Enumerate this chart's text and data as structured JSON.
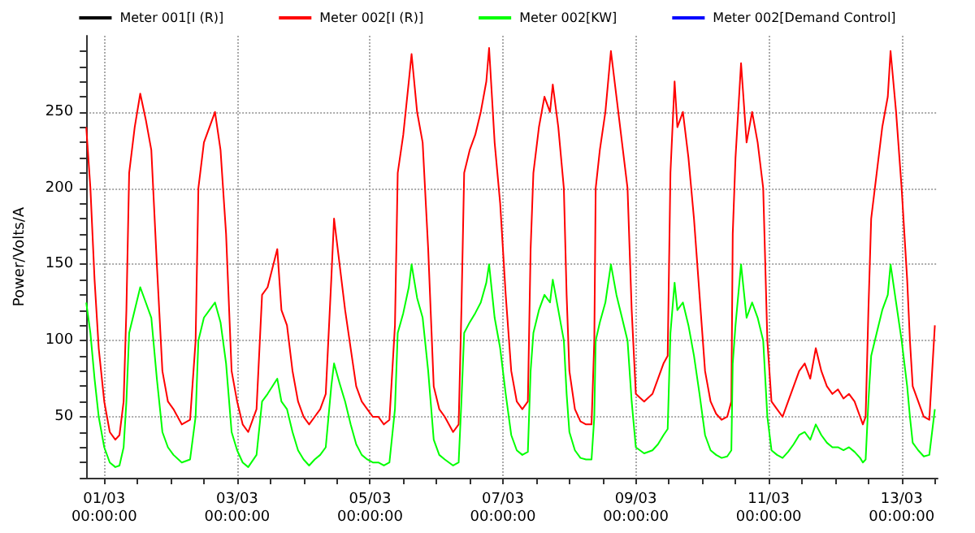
{
  "chart_data": {
    "type": "line",
    "ylabel": "Power/Volts/A",
    "legend": "top",
    "grid": true,
    "x": [
      "--02-28T17:30",
      "--02-28T19:00",
      "--02-28T20:30",
      "--02-28T22:00",
      "--03-01T00:00",
      "--03-01T02:00",
      "--03-01T04:00",
      "--03-01T05:30",
      "--03-01T07:00",
      "--03-01T08:00",
      "--03-01T09:00",
      "--03-01T11:00",
      "--03-01T13:00",
      "--03-01T15:00",
      "--03-01T17:00",
      "--03-01T19:00",
      "--03-01T21:00",
      "--03-01T23:00",
      "--03-02T01:00",
      "--03-02T04:00",
      "--03-02T07:00",
      "--03-02T09:00",
      "--03-02T10:00",
      "--03-02T12:00",
      "--03-02T14:00",
      "--03-02T16:00",
      "--03-02T18:00",
      "--03-02T20:00",
      "--03-02T22:00",
      "--03-03T00:00",
      "--03-03T02:00",
      "--03-03T04:00",
      "--03-03T07:00",
      "--03-03T09:00",
      "--03-03T11:00",
      "--03-03T14:30",
      "--03-03T16:00",
      "--03-03T18:00",
      "--03-03T20:00",
      "--03-03T22:00",
      "--03-04T00:00",
      "--03-04T02:00",
      "--03-04T04:00",
      "--03-04T06:00",
      "--03-04T08:00",
      "--03-04T10:00",
      "--03-04T11:00",
      "--03-04T13:00",
      "--03-04T15:00",
      "--03-04T17:00",
      "--03-04T19:00",
      "--03-04T21:00",
      "--03-04T23:00",
      "--03-05T01:00",
      "--03-05T03:00",
      "--03-05T05:00",
      "--03-05T07:00",
      "--03-05T09:00",
      "--03-05T10:00",
      "--03-05T12:00",
      "--03-05T14:00",
      "--03-05T15:00",
      "--03-05T17:00",
      "--03-05T19:00",
      "--03-05T21:00",
      "--03-05T23:00",
      "--03-06T01:00",
      "--03-06T03:00",
      "--03-06T06:00",
      "--03-06T08:00",
      "--03-06T09:00",
      "--03-06T10:00",
      "--03-06T12:00",
      "--03-06T14:00",
      "--03-06T16:00",
      "--03-06T18:00",
      "--03-06T19:00",
      "--03-06T21:00",
      "--03-06T23:00",
      "--03-07T01:00",
      "--03-07T03:00",
      "--03-07T05:00",
      "--03-07T07:00",
      "--03-07T09:00",
      "--03-07T10:00",
      "--03-07T11:00",
      "--03-07T13:00",
      "--03-07T15:00",
      "--03-07T17:00",
      "--03-07T18:00",
      "--03-07T20:00",
      "--03-07T22:00",
      "--03-07T23:00",
      "--03-08T00:00",
      "--03-08T02:00",
      "--03-08T04:00",
      "--03-08T06:00",
      "--03-08T08:00",
      "--03-08T09:00",
      "--03-08T09:30",
      "--03-08T11:00",
      "--03-08T13:00",
      "--03-08T15:00",
      "--03-08T17:00",
      "--03-08T19:00",
      "--03-08T21:00",
      "--03-08T22:30",
      "--03-09T00:00",
      "--03-09T03:00",
      "--03-09T06:00",
      "--03-09T08:00",
      "--03-09T10:00",
      "--03-09T11:30",
      "--03-09T12:30",
      "--03-09T14:00",
      "--03-09T15:00",
      "--03-09T17:00",
      "--03-09T19:00",
      "--03-09T21:00",
      "--03-09T23:00",
      "--03-10T01:00",
      "--03-10T03:00",
      "--03-10T05:00",
      "--03-10T07:00",
      "--03-10T09:00",
      "--03-10T10:30",
      "--03-10T11:00",
      "--03-10T12:00",
      "--03-10T14:00",
      "--03-10T16:00",
      "--03-10T18:00",
      "--03-10T20:00",
      "--03-10T22:00",
      "--03-10T23:30",
      "--03-11T01:00",
      "--03-11T03:00",
      "--03-11T05:00",
      "--03-11T07:00",
      "--03-11T09:00",
      "--03-11T11:00",
      "--03-11T13:00",
      "--03-11T15:00",
      "--03-11T17:00",
      "--03-11T19:00",
      "--03-11T21:00",
      "--03-11T23:00",
      "--03-12T01:00",
      "--03-12T03:00",
      "--03-12T05:00",
      "--03-12T07:00",
      "--03-12T09:00",
      "--03-12T10:00",
      "--03-12T11:00",
      "--03-12T12:00",
      "--03-12T13:00",
      "--03-12T15:00",
      "--03-12T17:00",
      "--03-12T19:00",
      "--03-12T20:00",
      "--03-12T22:00",
      "--03-13T00:00",
      "--03-13T02:00",
      "--03-13T03:00",
      "--03-13T04:00",
      "--03-13T06:00",
      "--03-13T08:00",
      "--03-13T10:00",
      "--03-13T12:00"
    ],
    "series": [
      {
        "name": "Meter 001[I (R)]",
        "color": "#000000",
        "values": [
          null,
          null,
          null,
          null,
          null,
          null,
          null,
          null,
          null,
          null,
          null,
          null,
          null,
          null,
          null,
          null,
          null,
          null,
          null,
          null,
          null,
          null,
          null,
          null,
          null,
          null,
          null,
          null,
          null,
          null,
          null,
          null,
          null,
          null,
          null,
          null,
          null,
          null,
          null,
          null,
          null,
          null,
          null,
          null,
          null,
          null,
          null,
          null,
          null,
          null,
          null,
          null,
          null,
          null,
          null,
          null,
          null,
          null,
          null,
          null,
          null,
          null,
          null,
          null,
          null,
          null,
          null,
          null,
          null,
          null,
          null,
          null,
          null,
          null,
          null,
          null,
          null,
          null,
          null,
          null,
          null,
          null,
          null,
          null,
          null,
          null,
          null,
          null,
          null,
          null,
          null,
          null,
          null,
          null,
          null,
          null,
          null,
          null,
          null,
          null,
          null,
          null,
          null,
          null,
          null,
          null,
          null,
          null,
          null,
          null,
          null,
          null,
          null,
          null,
          null,
          null,
          null,
          null,
          null,
          null,
          null,
          null,
          null,
          null,
          null,
          null,
          null,
          null,
          null,
          null,
          null,
          null,
          null,
          null,
          null,
          null,
          null,
          null,
          null,
          null,
          null,
          null,
          null,
          null,
          null,
          null,
          null,
          null,
          null,
          null,
          null,
          null,
          null,
          null,
          null,
          null,
          null,
          null,
          null,
          null,
          null,
          null,
          null,
          null,
          null,
          null,
          null,
          null
        ]
      },
      {
        "name": "Meter 002[I (R)]",
        "color": "#ff0000",
        "values": [
          240,
          200,
          140,
          95,
          60,
          40,
          35,
          38,
          60,
          120,
          210,
          240,
          262,
          245,
          225,
          150,
          80,
          60,
          55,
          45,
          48,
          100,
          200,
          230,
          240,
          250,
          225,
          170,
          80,
          60,
          45,
          40,
          55,
          130,
          135,
          160,
          120,
          110,
          80,
          60,
          50,
          45,
          50,
          55,
          65,
          140,
          180,
          150,
          120,
          95,
          70,
          60,
          55,
          50,
          50,
          45,
          48,
          110,
          210,
          235,
          270,
          288,
          250,
          230,
          160,
          70,
          55,
          50,
          40,
          45,
          120,
          210,
          225,
          235,
          250,
          270,
          292,
          230,
          190,
          130,
          80,
          60,
          55,
          60,
          160,
          210,
          240,
          260,
          250,
          268,
          240,
          200,
          130,
          80,
          55,
          47,
          45,
          45,
          100,
          200,
          225,
          250,
          290,
          260,
          230,
          200,
          120,
          65,
          60,
          65,
          75,
          85,
          90,
          210,
          270,
          240,
          250,
          220,
          180,
          130,
          80,
          60,
          52,
          48,
          50,
          60,
          170,
          220,
          282,
          230,
          250,
          230,
          200,
          100,
          60,
          55,
          50,
          60,
          70,
          80,
          85,
          75,
          95,
          80,
          70,
          65,
          68,
          62,
          65,
          60,
          50,
          45,
          50,
          120,
          180,
          210,
          240,
          260,
          290,
          250,
          200,
          140,
          100,
          70,
          60,
          50,
          48,
          110
        ]
      },
      {
        "name": "Meter 002[KW]",
        "color": "#00ff00",
        "values": [
          125,
          105,
          75,
          50,
          30,
          20,
          17,
          18,
          30,
          60,
          105,
          120,
          135,
          125,
          115,
          75,
          40,
          30,
          25,
          20,
          22,
          50,
          100,
          115,
          120,
          125,
          112,
          85,
          40,
          28,
          20,
          17,
          25,
          60,
          65,
          75,
          60,
          55,
          40,
          28,
          22,
          18,
          22,
          25,
          30,
          70,
          85,
          72,
          60,
          45,
          32,
          25,
          22,
          20,
          20,
          18,
          20,
          55,
          105,
          118,
          135,
          150,
          128,
          115,
          80,
          35,
          25,
          22,
          18,
          20,
          60,
          105,
          112,
          118,
          125,
          138,
          150,
          115,
          95,
          65,
          38,
          28,
          25,
          27,
          80,
          105,
          120,
          130,
          125,
          140,
          120,
          100,
          65,
          40,
          28,
          23,
          22,
          22,
          50,
          100,
          112,
          125,
          150,
          130,
          115,
          100,
          60,
          30,
          26,
          28,
          32,
          38,
          42,
          105,
          138,
          120,
          125,
          110,
          90,
          65,
          38,
          28,
          25,
          23,
          24,
          28,
          85,
          110,
          150,
          115,
          125,
          115,
          100,
          50,
          28,
          25,
          23,
          27,
          32,
          38,
          40,
          35,
          45,
          38,
          33,
          30,
          30,
          28,
          30,
          27,
          23,
          20,
          22,
          60,
          90,
          105,
          120,
          130,
          150,
          125,
          100,
          70,
          50,
          33,
          28,
          24,
          25,
          55
        ]
      },
      {
        "name": "Meter 002[Demand Control]",
        "color": "#0000ff",
        "values": [
          null,
          null,
          null,
          null,
          null,
          null,
          null,
          null,
          null,
          null,
          null,
          null,
          null,
          null,
          null,
          null,
          null,
          null,
          null,
          null,
          null,
          null,
          null,
          null,
          null,
          null,
          null,
          null,
          null,
          null,
          null,
          null,
          null,
          null,
          null,
          null,
          null,
          null,
          null,
          null,
          null,
          null,
          null,
          null,
          null,
          null,
          null,
          null,
          null,
          null,
          null,
          null,
          null,
          null,
          null,
          null,
          null,
          null,
          null,
          null,
          null,
          null,
          null,
          null,
          null,
          null,
          null,
          null,
          null,
          null,
          null,
          null,
          null,
          null,
          null,
          null,
          null,
          null,
          null,
          null,
          null,
          null,
          null,
          null,
          null,
          null,
          null,
          null,
          null,
          null,
          null,
          null,
          null,
          null,
          null,
          null,
          null,
          null,
          null,
          null,
          null,
          null,
          null,
          null,
          null,
          null,
          null,
          null,
          null,
          null,
          null,
          null,
          null,
          null,
          null,
          null,
          null,
          null,
          null,
          null,
          null,
          null,
          null,
          null,
          null,
          null,
          null,
          null,
          null,
          null,
          null,
          null,
          null,
          null,
          null,
          null,
          null,
          null,
          null,
          null,
          null,
          null,
          null,
          null,
          null,
          null,
          null,
          null,
          null,
          null,
          null,
          null,
          null,
          null,
          null,
          null,
          null,
          null,
          null,
          null,
          null,
          null,
          null,
          null,
          null,
          null,
          null,
          null
        ]
      }
    ],
    "xlim": [
      "--02-28T17:30",
      "--03-13T13:00"
    ],
    "xticks": [
      {
        "value": "--03-01T00:00",
        "label": "01/03\n00:00:00"
      },
      {
        "value": "--03-01T12:00",
        "label": null
      },
      {
        "value": "--03-02T00:00",
        "label": null
      },
      {
        "value": "--03-02T12:00",
        "label": null
      },
      {
        "value": "--03-03T00:00",
        "label": "03/03\n00:00:00"
      },
      {
        "value": "--03-03T12:00",
        "label": null
      },
      {
        "value": "--03-04T00:00",
        "label": null
      },
      {
        "value": "--03-04T12:00",
        "label": null
      },
      {
        "value": "--03-05T00:00",
        "label": "05/03\n00:00:00"
      },
      {
        "value": "--03-05T12:00",
        "label": null
      },
      {
        "value": "--03-06T00:00",
        "label": null
      },
      {
        "value": "--03-06T12:00",
        "label": null
      },
      {
        "value": "--03-07T00:00",
        "label": "07/03\n00:00:00"
      },
      {
        "value": "--03-07T12:00",
        "label": null
      },
      {
        "value": "--03-08T00:00",
        "label": null
      },
      {
        "value": "--03-08T12:00",
        "label": null
      },
      {
        "value": "--03-09T00:00",
        "label": "09/03\n00:00:00"
      },
      {
        "value": "--03-09T12:00",
        "label": null
      },
      {
        "value": "--03-10T00:00",
        "label": null
      },
      {
        "value": "--03-10T12:00",
        "label": null
      },
      {
        "value": "--03-11T00:00",
        "label": "11/03\n00:00:00"
      },
      {
        "value": "--03-11T12:00",
        "label": null
      },
      {
        "value": "--03-12T00:00",
        "label": null
      },
      {
        "value": "--03-12T12:00",
        "label": null
      },
      {
        "value": "--03-13T00:00",
        "label": "13/03\n00:00:00"
      },
      {
        "value": "--03-13T12:00",
        "label": null
      }
    ],
    "ylim": [
      10,
      300
    ],
    "yticks": [
      {
        "value": 10,
        "label": null
      },
      {
        "value": 20,
        "label": null
      },
      {
        "value": 30,
        "label": null
      },
      {
        "value": 40,
        "label": null
      },
      50,
      {
        "value": 60,
        "label": null
      },
      {
        "value": 70,
        "label": null
      },
      {
        "value": 80,
        "label": null
      },
      {
        "value": 90,
        "label": null
      },
      100,
      {
        "value": 110,
        "label": null
      },
      {
        "value": 120,
        "label": null
      },
      {
        "value": 130,
        "label": null
      },
      {
        "value": 140,
        "label": null
      },
      150,
      {
        "value": 160,
        "label": null
      },
      {
        "value": 170,
        "label": null
      },
      {
        "value": 180,
        "label": null
      },
      {
        "value": 190,
        "label": null
      },
      200,
      {
        "value": 210,
        "label": null
      },
      {
        "value": 220,
        "label": null
      },
      {
        "value": 230,
        "label": null
      },
      {
        "value": 240,
        "label": null
      },
      250,
      {
        "value": 260,
        "label": null
      },
      {
        "value": 270,
        "label": null
      },
      {
        "value": 280,
        "label": null
      },
      {
        "value": 290,
        "label": null
      }
    ]
  }
}
